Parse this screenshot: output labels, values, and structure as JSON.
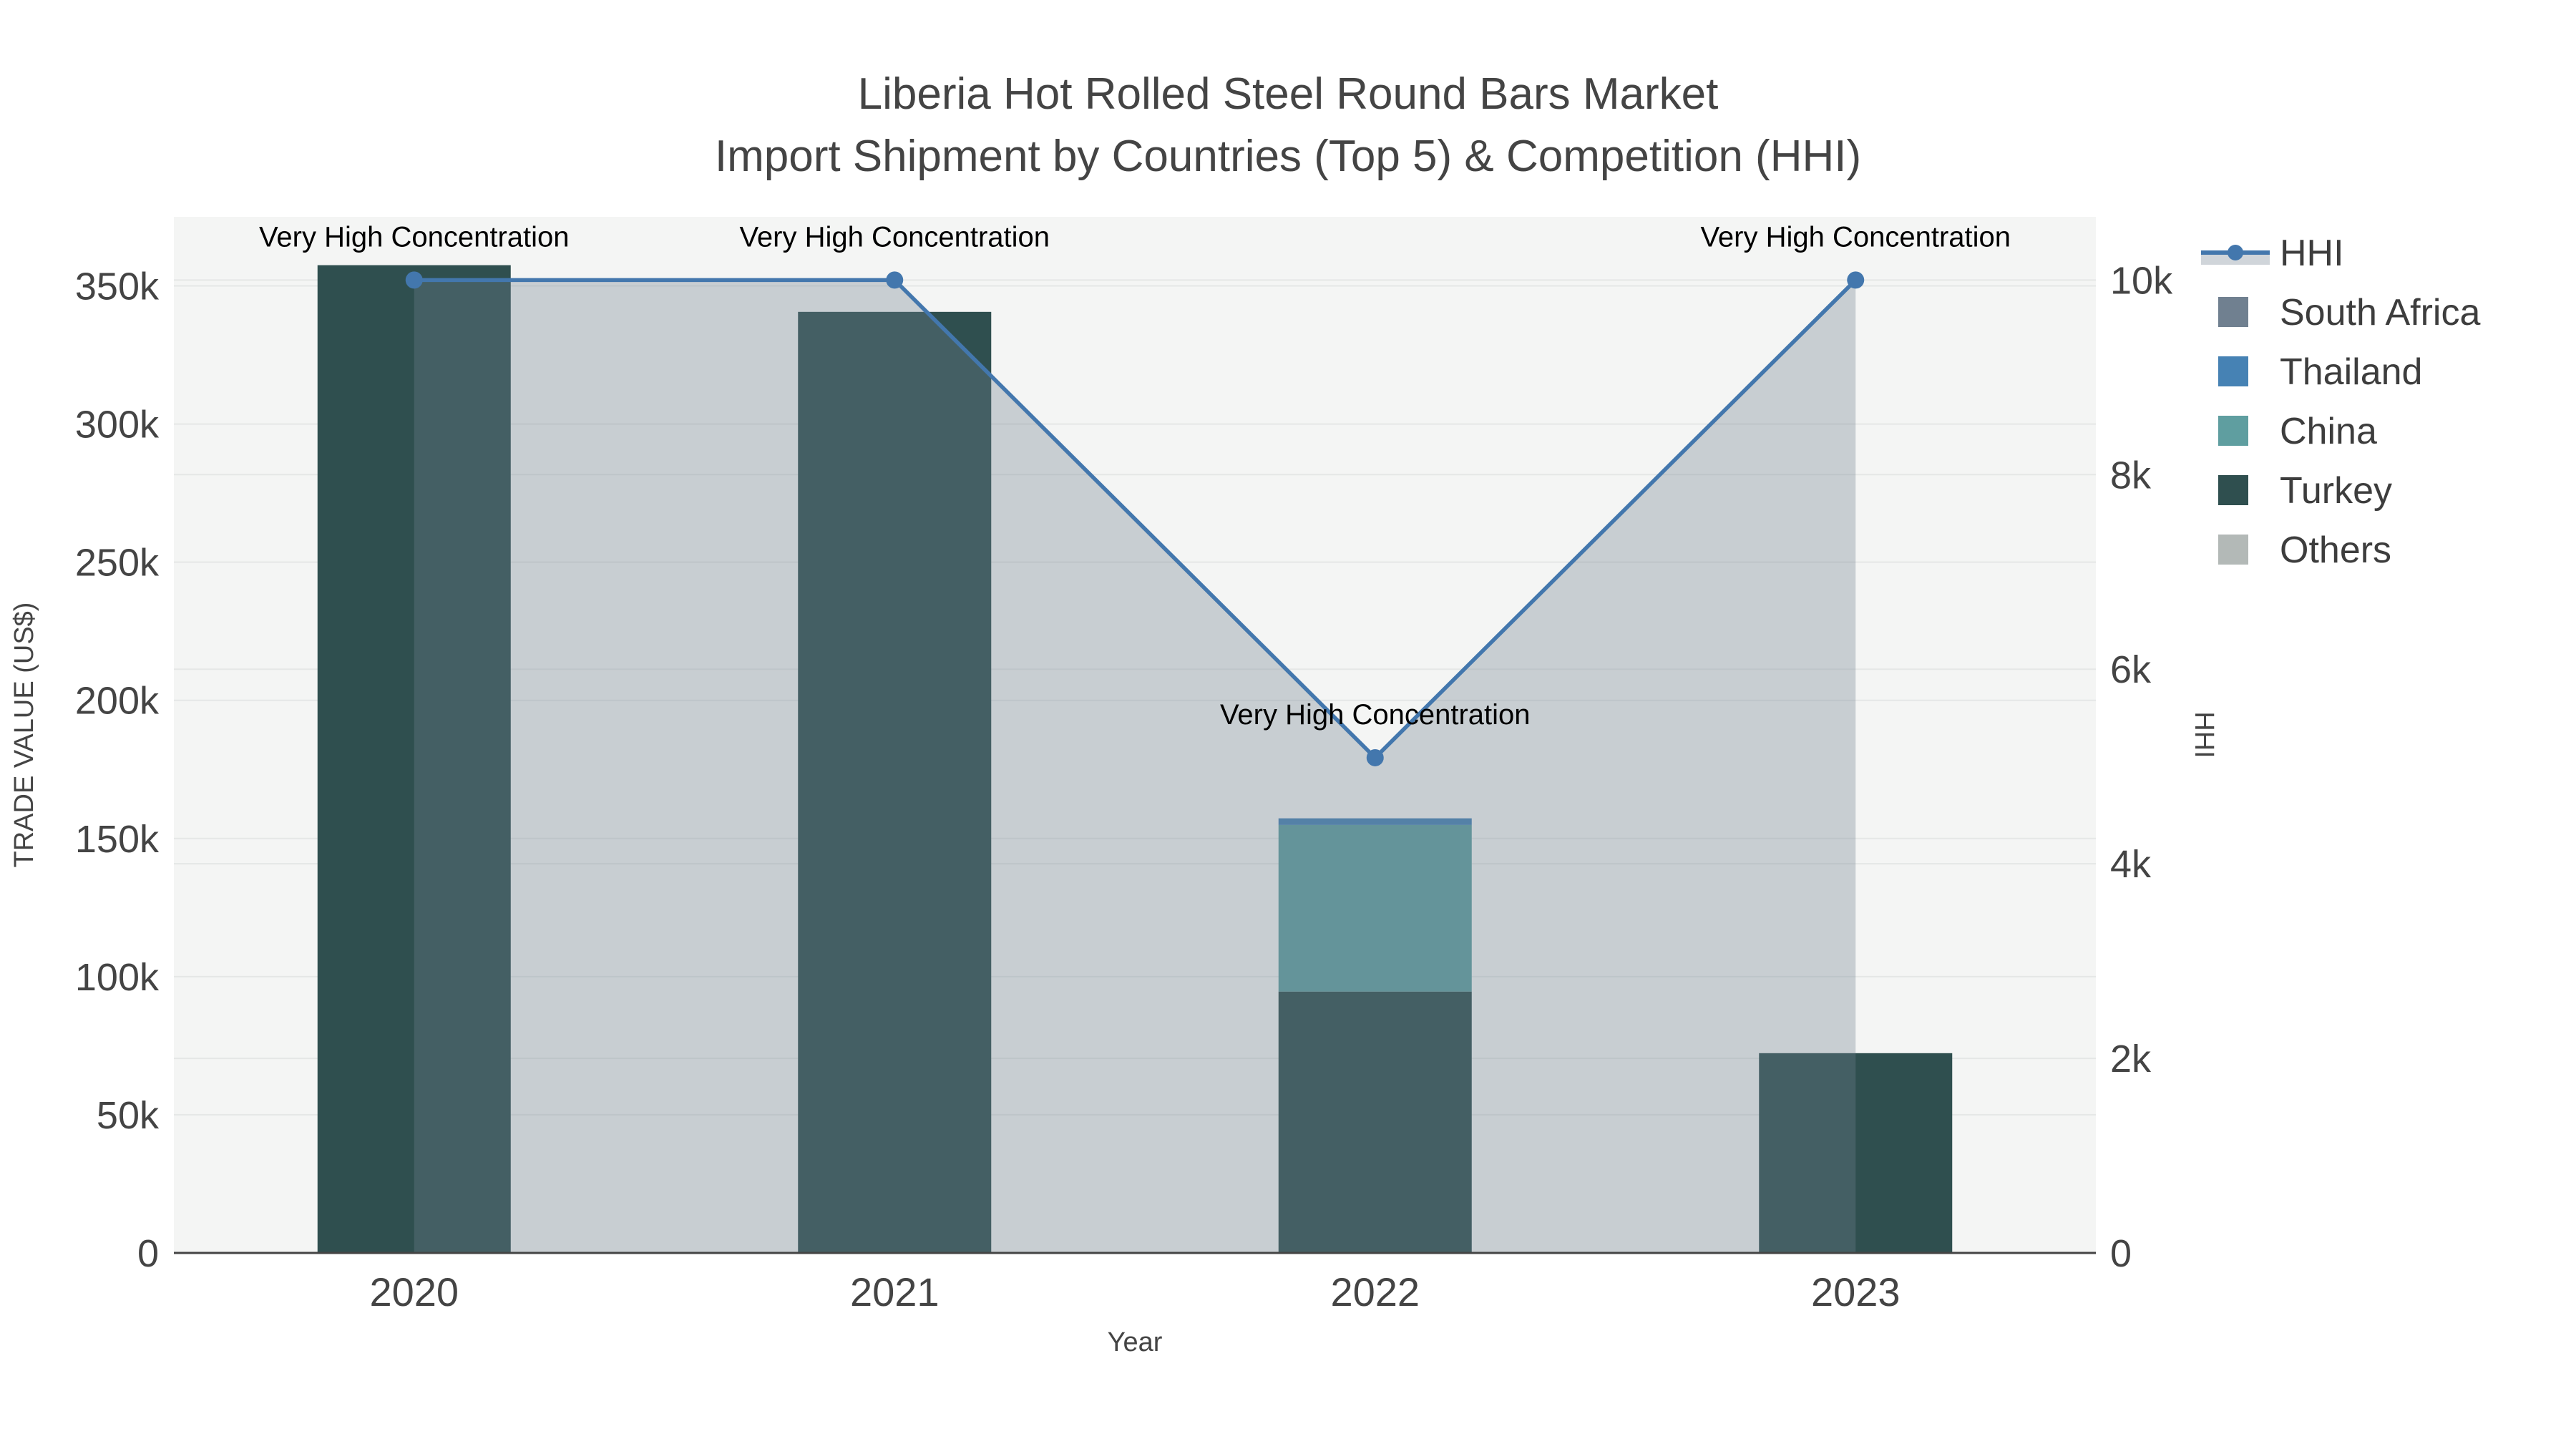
{
  "title": {
    "line1": "Liberia Hot Rolled Steel Round Bars Market",
    "line2": "Import Shipment by Countries (Top 5) & Competition (HHI)"
  },
  "axes": {
    "x": {
      "title": "Year",
      "tick_labels": [
        "2020",
        "2021",
        "2022",
        "2023"
      ]
    },
    "y_left": {
      "title": "TRADE VALUE (US$)",
      "tick_values": [
        0,
        50000,
        100000,
        150000,
        200000,
        250000,
        300000,
        350000
      ],
      "tick_labels": [
        "0",
        "50k",
        "100k",
        "150k",
        "200k",
        "250k",
        "300k",
        "350k"
      ],
      "range": [
        0,
        375000
      ]
    },
    "y_right": {
      "title": "HHI",
      "tick_values": [
        0,
        2000,
        4000,
        6000,
        8000,
        10000
      ],
      "tick_labels": [
        "0",
        "2k",
        "4k",
        "6k",
        "8k",
        "10k"
      ],
      "range": [
        0,
        10650
      ]
    }
  },
  "legend": {
    "items": [
      {
        "label": "HHI",
        "type": "line",
        "color": "#4377AD"
      },
      {
        "label": "South Africa",
        "type": "bar",
        "color": "#708090"
      },
      {
        "label": "Thailand",
        "type": "bar",
        "color": "#4682B4"
      },
      {
        "label": "China",
        "type": "bar",
        "color": "#5F9EA0"
      },
      {
        "label": "Turkey",
        "type": "bar",
        "color": "#2F4F4F"
      },
      {
        "label": "Others",
        "type": "bar",
        "color": "#B3B9B7"
      }
    ]
  },
  "annotations": {
    "label": "Very High Concentration",
    "years": [
      "2020",
      "2021",
      "2022",
      "2023"
    ]
  },
  "chart_data": {
    "type": "bar",
    "subtype": "stacked-bars-with-line",
    "categories": [
      "2020",
      "2021",
      "2022",
      "2023"
    ],
    "series": [
      {
        "name": "South Africa",
        "axis": "left",
        "color": "#708090",
        "values": [
          0,
          0,
          0,
          0
        ]
      },
      {
        "name": "Thailand",
        "axis": "left",
        "color": "#4682B4",
        "values": [
          0,
          0,
          2400,
          0
        ]
      },
      {
        "name": "China",
        "axis": "left",
        "color": "#5F9EA0",
        "values": [
          0,
          0,
          60300,
          0
        ]
      },
      {
        "name": "Turkey",
        "axis": "left",
        "color": "#2F4F4F",
        "values": [
          357500,
          340600,
          94600,
          72300
        ]
      },
      {
        "name": "Others",
        "axis": "left",
        "color": "#B3B9B7",
        "values": [
          0,
          0,
          0,
          0
        ]
      }
    ],
    "stack_order": [
      "Turkey",
      "China",
      "Thailand",
      "South Africa",
      "Others"
    ],
    "line_series": {
      "name": "HHI",
      "axis": "right",
      "color": "#4377AD",
      "area_fill": "rgba(112,128,144,0.33)",
      "values": [
        10000,
        10000,
        5090,
        10000
      ]
    },
    "title": "Liberia Hot Rolled Steel Round Bars Market — Import Shipment by Countries (Top 5) & Competition (HHI)",
    "xlabel": "Year",
    "ylabel_left": "TRADE VALUE (US$)",
    "ylabel_right": "HHI",
    "ylim_left": [
      0,
      375000
    ],
    "ylim_right": [
      0,
      10650
    ],
    "grid": true,
    "legend_position": "right"
  },
  "colors": {
    "paper": "#ffffff",
    "plot_bg": "#f4f5f4",
    "grid": "#e5e7e6",
    "axis_line": "#444444",
    "text": "#444444",
    "annotation": "#000000"
  }
}
